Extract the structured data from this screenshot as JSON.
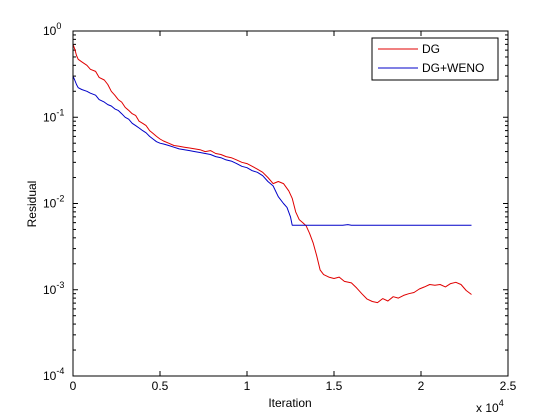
{
  "chart_data": {
    "type": "line",
    "title": "",
    "xlabel": "Iteration",
    "ylabel": "Residual",
    "x_multiplier_label": "x 10",
    "x_multiplier_exponent": "4",
    "xlim": [
      0,
      2.5
    ],
    "ylim": [
      0.0001,
      1
    ],
    "yscale": "log",
    "grid": false,
    "legend_position": "top-right",
    "x_ticks": [
      {
        "value": 0,
        "label": "0"
      },
      {
        "value": 0.5,
        "label": "0.5"
      },
      {
        "value": 1,
        "label": "1"
      },
      {
        "value": 1.5,
        "label": "1.5"
      },
      {
        "value": 2,
        "label": "2"
      },
      {
        "value": 2.5,
        "label": "2.5"
      }
    ],
    "y_ticks": [
      {
        "value": 0.0001,
        "base": "10",
        "exp": "-4"
      },
      {
        "value": 0.001,
        "base": "10",
        "exp": "-3"
      },
      {
        "value": 0.01,
        "base": "10",
        "exp": "-2"
      },
      {
        "value": 0.1,
        "base": "10",
        "exp": "-1"
      },
      {
        "value": 1,
        "base": "10",
        "exp": "0"
      }
    ],
    "series": [
      {
        "name": "DG",
        "color": "#e00000",
        "points": [
          [
            0.0,
            0.7
          ],
          [
            0.01,
            0.62
          ],
          [
            0.02,
            0.52
          ],
          [
            0.03,
            0.47
          ],
          [
            0.05,
            0.44
          ],
          [
            0.08,
            0.4
          ],
          [
            0.1,
            0.36
          ],
          [
            0.13,
            0.34
          ],
          [
            0.15,
            0.29
          ],
          [
            0.18,
            0.27
          ],
          [
            0.2,
            0.24
          ],
          [
            0.22,
            0.2
          ],
          [
            0.24,
            0.18
          ],
          [
            0.26,
            0.16
          ],
          [
            0.28,
            0.15
          ],
          [
            0.3,
            0.13
          ],
          [
            0.32,
            0.12
          ],
          [
            0.34,
            0.11
          ],
          [
            0.36,
            0.105
          ],
          [
            0.38,
            0.09
          ],
          [
            0.4,
            0.085
          ],
          [
            0.42,
            0.08
          ],
          [
            0.44,
            0.07
          ],
          [
            0.46,
            0.065
          ],
          [
            0.48,
            0.06
          ],
          [
            0.5,
            0.056
          ],
          [
            0.52,
            0.053
          ],
          [
            0.55,
            0.05
          ],
          [
            0.58,
            0.047
          ],
          [
            0.61,
            0.046
          ],
          [
            0.64,
            0.045
          ],
          [
            0.67,
            0.044
          ],
          [
            0.7,
            0.043
          ],
          [
            0.73,
            0.042
          ],
          [
            0.76,
            0.04
          ],
          [
            0.79,
            0.041
          ],
          [
            0.82,
            0.038
          ],
          [
            0.85,
            0.037
          ],
          [
            0.88,
            0.035
          ],
          [
            0.91,
            0.034
          ],
          [
            0.94,
            0.032
          ],
          [
            0.97,
            0.03
          ],
          [
            1.0,
            0.029
          ],
          [
            1.03,
            0.027
          ],
          [
            1.06,
            0.025
          ],
          [
            1.09,
            0.023
          ],
          [
            1.12,
            0.02
          ],
          [
            1.15,
            0.017
          ],
          [
            1.18,
            0.018
          ],
          [
            1.21,
            0.017
          ],
          [
            1.24,
            0.014
          ],
          [
            1.26,
            0.0115
          ],
          [
            1.28,
            0.008
          ],
          [
            1.3,
            0.0065
          ],
          [
            1.32,
            0.006
          ],
          [
            1.34,
            0.0055
          ],
          [
            1.36,
            0.0045
          ],
          [
            1.38,
            0.0035
          ],
          [
            1.4,
            0.0025
          ],
          [
            1.42,
            0.0017
          ],
          [
            1.44,
            0.0015
          ],
          [
            1.47,
            0.0014
          ],
          [
            1.5,
            0.00135
          ],
          [
            1.53,
            0.0014
          ],
          [
            1.56,
            0.00125
          ],
          [
            1.6,
            0.0012
          ],
          [
            1.63,
            0.00105
          ],
          [
            1.66,
            0.0009
          ],
          [
            1.69,
            0.00078
          ],
          [
            1.72,
            0.00073
          ],
          [
            1.75,
            0.00071
          ],
          [
            1.78,
            0.00079
          ],
          [
            1.81,
            0.00074
          ],
          [
            1.84,
            0.00083
          ],
          [
            1.87,
            0.0008
          ],
          [
            1.9,
            0.00086
          ],
          [
            1.93,
            0.0009
          ],
          [
            1.96,
            0.00093
          ],
          [
            1.99,
            0.00102
          ],
          [
            2.02,
            0.00108
          ],
          [
            2.05,
            0.00115
          ],
          [
            2.08,
            0.00113
          ],
          [
            2.11,
            0.00115
          ],
          [
            2.14,
            0.00108
          ],
          [
            2.17,
            0.00118
          ],
          [
            2.2,
            0.00122
          ],
          [
            2.23,
            0.00115
          ],
          [
            2.26,
            0.00098
          ],
          [
            2.29,
            0.00088
          ]
        ]
      },
      {
        "name": "DG+WENO",
        "color": "#0000c8",
        "points": [
          [
            0.0,
            0.3
          ],
          [
            0.01,
            0.27
          ],
          [
            0.02,
            0.24
          ],
          [
            0.03,
            0.22
          ],
          [
            0.05,
            0.21
          ],
          [
            0.08,
            0.2
          ],
          [
            0.1,
            0.19
          ],
          [
            0.13,
            0.18
          ],
          [
            0.15,
            0.16
          ],
          [
            0.18,
            0.15
          ],
          [
            0.2,
            0.14
          ],
          [
            0.22,
            0.135
          ],
          [
            0.24,
            0.125
          ],
          [
            0.26,
            0.12
          ],
          [
            0.28,
            0.11
          ],
          [
            0.3,
            0.1
          ],
          [
            0.32,
            0.095
          ],
          [
            0.34,
            0.085
          ],
          [
            0.36,
            0.08
          ],
          [
            0.38,
            0.075
          ],
          [
            0.4,
            0.07
          ],
          [
            0.42,
            0.066
          ],
          [
            0.44,
            0.06
          ],
          [
            0.46,
            0.056
          ],
          [
            0.48,
            0.052
          ],
          [
            0.5,
            0.05
          ],
          [
            0.52,
            0.049
          ],
          [
            0.55,
            0.047
          ],
          [
            0.58,
            0.045
          ],
          [
            0.61,
            0.043
          ],
          [
            0.64,
            0.042
          ],
          [
            0.67,
            0.041
          ],
          [
            0.7,
            0.04
          ],
          [
            0.73,
            0.039
          ],
          [
            0.76,
            0.038
          ],
          [
            0.79,
            0.037
          ],
          [
            0.82,
            0.035
          ],
          [
            0.85,
            0.034
          ],
          [
            0.88,
            0.032
          ],
          [
            0.91,
            0.031
          ],
          [
            0.94,
            0.029
          ],
          [
            0.97,
            0.027
          ],
          [
            1.0,
            0.026
          ],
          [
            1.03,
            0.024
          ],
          [
            1.06,
            0.023
          ],
          [
            1.09,
            0.021
          ],
          [
            1.12,
            0.018
          ],
          [
            1.15,
            0.016
          ],
          [
            1.18,
            0.012
          ],
          [
            1.21,
            0.01
          ],
          [
            1.23,
            0.009
          ],
          [
            1.25,
            0.007
          ],
          [
            1.26,
            0.0056
          ],
          [
            1.3,
            0.0056
          ],
          [
            1.4,
            0.0056
          ],
          [
            1.5,
            0.0056
          ],
          [
            1.55,
            0.0056
          ],
          [
            1.58,
            0.0057
          ],
          [
            1.6,
            0.0056
          ],
          [
            1.7,
            0.0056
          ],
          [
            1.8,
            0.0056
          ],
          [
            1.9,
            0.0056
          ],
          [
            2.0,
            0.0056
          ],
          [
            2.1,
            0.0056
          ],
          [
            2.2,
            0.0056
          ],
          [
            2.29,
            0.0056
          ]
        ]
      }
    ]
  }
}
